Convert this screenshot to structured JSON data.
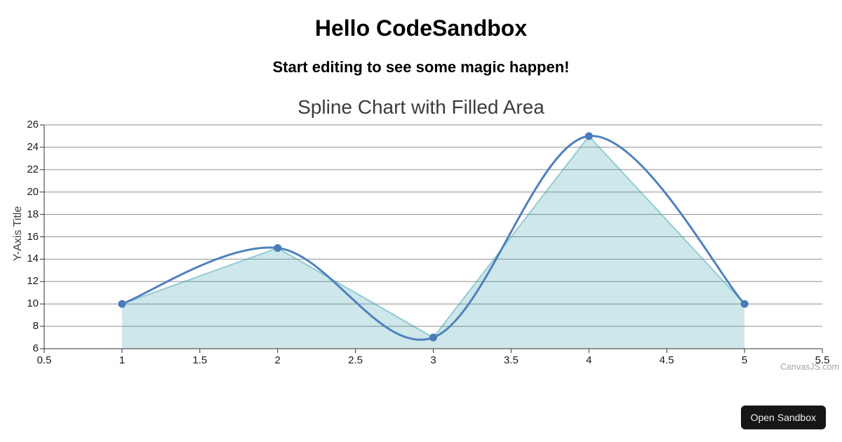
{
  "header": {
    "title": "Hello CodeSandbox",
    "subtitle": "Start editing to see some magic happen!"
  },
  "chart_data": {
    "type": "splineArea",
    "title": "Spline Chart with Filled Area",
    "ylabel": "Y-Axis Title",
    "xlabel": "",
    "x": [
      1,
      2,
      3,
      4,
      5
    ],
    "y": [
      10,
      15,
      7,
      25,
      10
    ],
    "xlim": [
      0.5,
      5.5
    ],
    "ylim": [
      6,
      26
    ],
    "x_ticks": [
      0.5,
      1,
      1.5,
      2,
      2.5,
      3,
      3.5,
      4,
      4.5,
      5,
      5.5
    ],
    "y_ticks": [
      6,
      8,
      10,
      12,
      14,
      16,
      18,
      20,
      22,
      24,
      26
    ],
    "grid": "horizontal-only",
    "legend": "none",
    "watermark": "CanvasJS.com",
    "colors": {
      "line": "#4f81bc",
      "marker": "#4a7db8",
      "area_fill": "#369ead",
      "area_fill_opacity": 0.25,
      "area_edge": "#369ead",
      "area_edge_opacity": 0.45,
      "gridline": "#8f8f8f",
      "axis_line": "#333333",
      "tick_label": "#1a1a1a"
    }
  },
  "footer": {
    "open_sandbox_label": "Open Sandbox"
  }
}
